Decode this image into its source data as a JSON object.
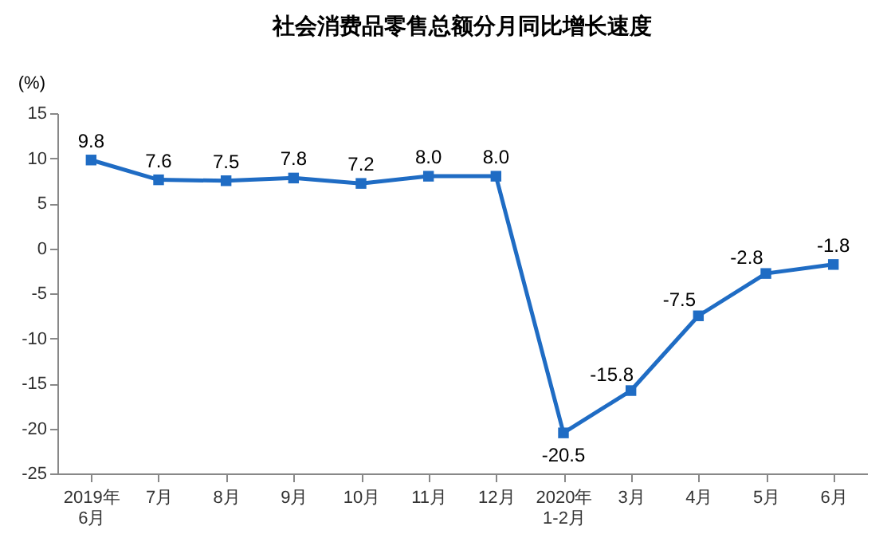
{
  "chart_data": {
    "type": "line",
    "title": "社会消费品零售总额分月同比增长速度",
    "ylabel": "(%)",
    "categories": [
      "2019年\n6月",
      "7月",
      "8月",
      "9月",
      "10月",
      "11月",
      "12月",
      "2020年\n1-2月",
      "3月",
      "4月",
      "5月",
      "6月"
    ],
    "series": [
      {
        "color": "#1f6cc4",
        "values": [
          9.8,
          7.6,
          7.5,
          7.8,
          7.2,
          8.0,
          8.0,
          -20.5,
          -15.8,
          -7.5,
          -2.8,
          -1.8
        ]
      }
    ],
    "ylim": [
      -25,
      15
    ],
    "yticks": [
      -25,
      -20,
      -15,
      -10,
      -5,
      0,
      5,
      10,
      15
    ],
    "value_labels": [
      "9.8",
      "7.6",
      "7.5",
      "7.8",
      "7.2",
      "8.0",
      "8.0",
      "-20.5",
      "-15.8",
      "-7.5",
      "-2.8",
      "-1.8"
    ],
    "marker": "square",
    "line_style": "solid",
    "grid": false,
    "legend": false
  }
}
